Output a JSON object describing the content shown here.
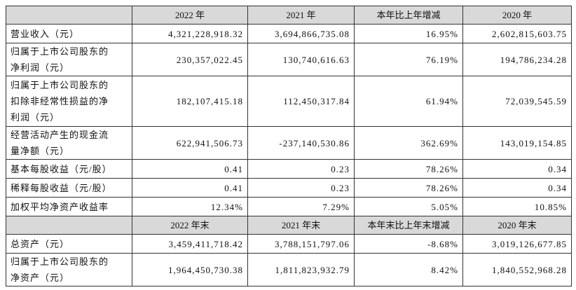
{
  "table": {
    "header1": [
      "2022 年",
      "2021 年",
      "本年比上年增减",
      "2020 年"
    ],
    "rows1": [
      {
        "label": [
          "营业收入（元）"
        ],
        "cells": [
          "4,321,228,918.32",
          "3,694,866,735.08",
          "16.95%",
          "2,602,815,603.75"
        ]
      },
      {
        "label": [
          "归属于上市公司股东的",
          "净利润（元）"
        ],
        "cells": [
          "230,357,022.45",
          "130,740,616.63",
          "76.19%",
          "194,786,234.28"
        ]
      },
      {
        "label": [
          "归属于上市公司股东的",
          "扣除非经常性损益的净",
          "利润（元）"
        ],
        "cells": [
          "182,107,415.18",
          "112,450,317.84",
          "61.94%",
          "72,039,545.59"
        ]
      },
      {
        "label": [
          "经营活动产生的现金流",
          "量净额（元）"
        ],
        "cells": [
          "622,941,506.73",
          "-237,140,530.86",
          "362.69%",
          "143,019,154.85"
        ]
      },
      {
        "label": [
          "基本每股收益（元/股）"
        ],
        "cells": [
          "0.41",
          "0.23",
          "78.26%",
          "0.34"
        ]
      },
      {
        "label": [
          "稀释每股收益（元/股）"
        ],
        "cells": [
          "0.41",
          "0.23",
          "78.26%",
          "0.34"
        ]
      },
      {
        "label": [
          "加权平均净资产收益率"
        ],
        "cells": [
          "12.34%",
          "7.29%",
          "5.05%",
          "10.85%"
        ]
      }
    ],
    "header2": [
      "2022 年末",
      "2021 年末",
      "本年末比上年末增减",
      "2020 年末"
    ],
    "rows2": [
      {
        "label": [
          "总资产（元）"
        ],
        "cells": [
          "3,459,411,718.42",
          "3,788,151,797.06",
          "-8.68%",
          "3,019,126,677.85"
        ]
      },
      {
        "label": [
          "归属于上市公司股东的",
          "净资产（元）"
        ],
        "cells": [
          "1,964,450,730.38",
          "1,811,823,932.79",
          "8.42%",
          "1,840,552,968.28"
        ]
      }
    ]
  }
}
